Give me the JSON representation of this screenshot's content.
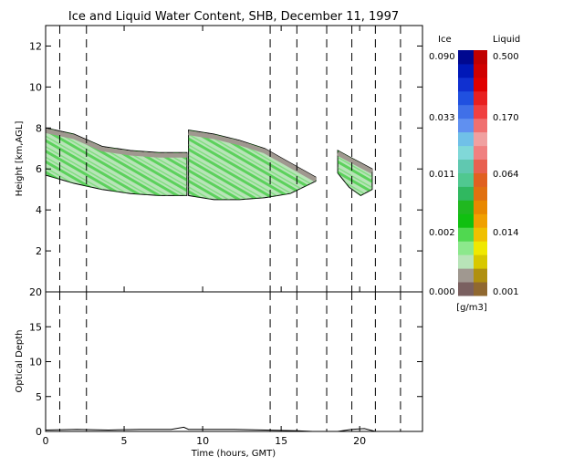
{
  "chart_data": [
    {
      "type": "heatmap",
      "title": "Ice and Liquid Water Content, SHB, December 11, 1997",
      "xlabel": "Time (hours, GMT)",
      "ylabel": "Height [km,AGL]",
      "xlim": [
        0,
        24
      ],
      "ylim": [
        0,
        13
      ],
      "x_ticks": [
        0,
        5,
        10,
        15,
        20
      ],
      "y_ticks": [
        2,
        4,
        6,
        8,
        10,
        12
      ],
      "vertical_dashed_lines_hours": [
        0.9,
        2.6,
        14.3,
        16.0,
        17.9,
        19.5,
        21.0,
        22.6
      ],
      "cloud_layers": [
        {
          "name": "ice cloud segment 1",
          "t_start": 0.0,
          "t_end": 9.0,
          "base_km": [
            5.7,
            5.3,
            5.0,
            4.8,
            4.7,
            4.7
          ],
          "top_km": [
            8.0,
            7.7,
            7.1,
            6.9,
            6.8,
            6.8
          ]
        },
        {
          "name": "ice cloud segment 2",
          "t_start": 9.1,
          "t_end": 17.2,
          "base_km": [
            4.7,
            4.5,
            4.5,
            4.6,
            4.8,
            5.4
          ],
          "top_km": [
            7.9,
            7.7,
            7.4,
            7.0,
            6.3,
            5.6
          ]
        },
        {
          "name": "ice cloud segment 3",
          "t_start": 18.6,
          "t_end": 20.8,
          "base_km": [
            5.8,
            5.1,
            4.7,
            5.0
          ],
          "top_km": [
            6.9,
            6.6,
            6.3,
            6.0
          ]
        }
      ],
      "colorbar": {
        "ice_header": "Ice",
        "liquid_header": "Liquid",
        "units": "[g/m3]",
        "ice_labels": [
          "0.090",
          "0.033",
          "0.011",
          "0.002",
          "0.000"
        ],
        "liquid_labels": [
          "0.500",
          "0.170",
          "0.064",
          "0.014",
          "0.001"
        ],
        "ice_colors": [
          "#7a6060",
          "#a09890",
          "#b8e4b8",
          "#8ce88c",
          "#50d850",
          "#10c010",
          "#20b820",
          "#30b860",
          "#50c890",
          "#60c8b0",
          "#80d8d8",
          "#70c0e8",
          "#6090f0",
          "#4070e8",
          "#2050e0",
          "#1030d0",
          "#0018b8",
          "#000890"
        ],
        "liquid_colors": [
          "#906830",
          "#b09010",
          "#d8c800",
          "#f0e800",
          "#f0c000",
          "#f0a000",
          "#e88800",
          "#e07010",
          "#e06020",
          "#e86050",
          "#f08080",
          "#f0a0a0",
          "#f07070",
          "#f04040",
          "#e82020",
          "#e00000",
          "#d00000",
          "#c00000"
        ]
      }
    },
    {
      "type": "line",
      "xlabel": "Time (hours, GMT)",
      "ylabel": "Optical Depth",
      "xlim": [
        0,
        24
      ],
      "ylim": [
        0,
        20
      ],
      "x_ticks": [
        0,
        5,
        10,
        15,
        20
      ],
      "y_ticks": [
        0,
        5,
        10,
        15,
        20
      ],
      "series": [
        {
          "x": [
            0,
            2,
            4,
            6,
            8,
            8.8,
            9.1,
            10,
            12,
            14,
            16,
            17,
            18.6,
            19.5,
            20.3,
            21,
            22,
            24
          ],
          "y": [
            0.2,
            0.3,
            0.2,
            0.3,
            0.3,
            0.6,
            0.3,
            0.3,
            0.3,
            0.2,
            0.1,
            0.0,
            0.0,
            0.3,
            0.4,
            0.0,
            0.0,
            0.0
          ]
        }
      ]
    }
  ]
}
